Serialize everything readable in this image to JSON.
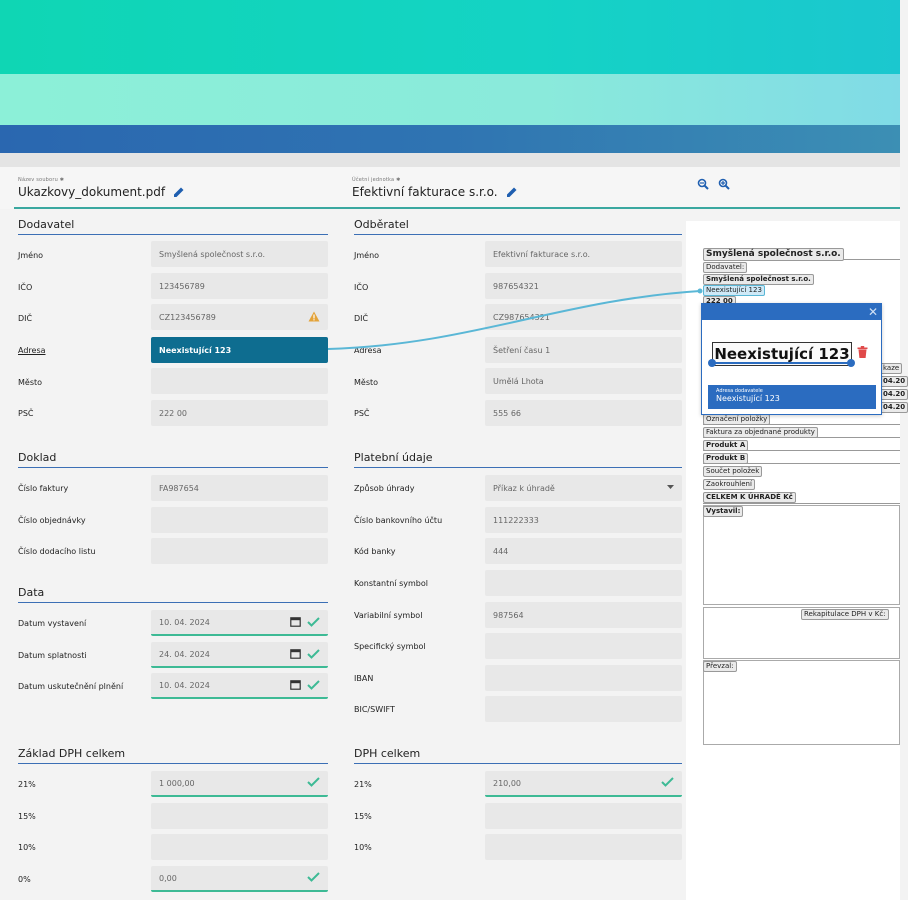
{
  "header": {
    "file_caption": "Název souboru ✱",
    "file_name": "Ukazkovy_dokument.pdf",
    "unit_caption": "Účetní jednotka ✱",
    "unit_name": "Efektivní fakturace s.r.o."
  },
  "supplier": {
    "title": "Dodavatel",
    "fields": [
      {
        "label": "Jméno",
        "value": "Smyšlená společnost s.r.o."
      },
      {
        "label": "IČO",
        "value": "123456789"
      },
      {
        "label": "DIČ",
        "value": "CZ123456789"
      },
      {
        "label": "Adresa",
        "value": "Neexistující 123"
      },
      {
        "label": "Město",
        "value": ""
      },
      {
        "label": "PSČ",
        "value": "222 00"
      }
    ]
  },
  "customer": {
    "title": "Odběratel",
    "fields": [
      {
        "label": "Jméno",
        "value": "Efektivní fakturace s.r.o."
      },
      {
        "label": "IČO",
        "value": "987654321"
      },
      {
        "label": "DIČ",
        "value": "CZ987654321"
      },
      {
        "label": "Adresa",
        "value": "Šetření času 1"
      },
      {
        "label": "Město",
        "value": "Umělá Lhota"
      },
      {
        "label": "PSČ",
        "value": "555 66"
      }
    ]
  },
  "document": {
    "title": "Doklad",
    "fields": [
      {
        "label": "Číslo faktury",
        "value": "FA987654"
      },
      {
        "label": "Číslo objednávky",
        "value": ""
      },
      {
        "label": "Číslo dodacího listu",
        "value": ""
      }
    ]
  },
  "dates": {
    "title": "Data",
    "fields": [
      {
        "label": "Datum vystavení",
        "value": "10. 04. 2024"
      },
      {
        "label": "Datum splatnosti",
        "value": "24. 04. 2024"
      },
      {
        "label": "Datum uskutečnění plnění",
        "value": "10. 04. 2024"
      }
    ]
  },
  "payment": {
    "title": "Platební údaje",
    "fields": [
      {
        "label": "Způsob úhrady",
        "value": "Příkaz k úhradě"
      },
      {
        "label": "Číslo bankovního účtu",
        "value": "111222333"
      },
      {
        "label": "Kód banky",
        "value": "444"
      },
      {
        "label": "Konstantní symbol",
        "value": ""
      },
      {
        "label": "Variabilní symbol",
        "value": "987564"
      },
      {
        "label": "Specifický symbol",
        "value": ""
      },
      {
        "label": "IBAN",
        "value": ""
      },
      {
        "label": "BIC/SWIFT",
        "value": ""
      }
    ]
  },
  "vat_base": {
    "title": "Základ DPH celkem",
    "fields": [
      {
        "label": "21%",
        "value": "1 000,00"
      },
      {
        "label": "15%",
        "value": ""
      },
      {
        "label": "10%",
        "value": ""
      },
      {
        "label": "0%",
        "value": "0,00"
      }
    ]
  },
  "vat_total": {
    "title": "DPH celkem",
    "fields": [
      {
        "label": "21%",
        "value": "210,00"
      },
      {
        "label": "15%",
        "value": ""
      },
      {
        "label": "10%",
        "value": ""
      }
    ]
  },
  "preview": {
    "company": "Smyšlená společnost s.r.o.",
    "supplier_tag": "Dodavatel:",
    "company_small": "Smyšlená společnost s.r.o.",
    "address": "Neexistující 123",
    "zip": "222 00",
    "item_label": "Označení položky",
    "invoice_for": "Faktura za objednané produkty",
    "product_a": "Produkt A",
    "product_b": "Produkt B",
    "sum_items": "Součet položek",
    "rounding": "Zaokrouhlení",
    "total": "CELKEM K ÚHRADĚ Kč",
    "issued_by": "Vystavil:",
    "vat_recap": "Rekapitulace DPH v Kč:",
    "received": "Převzal:",
    "cut_1": "kaze",
    "cut_2": "04.20",
    "cut_3": "04.20",
    "cut_4": "04.20"
  },
  "popup": {
    "text": "Neexistující 123",
    "info_caption": "Adresa dodavatele",
    "info_value": "Neexistující 123"
  },
  "colors": {
    "accent": "#3dba95",
    "selected": "#0e6d90",
    "popup": "#2b6cc0",
    "warning": "#e3a33a"
  }
}
